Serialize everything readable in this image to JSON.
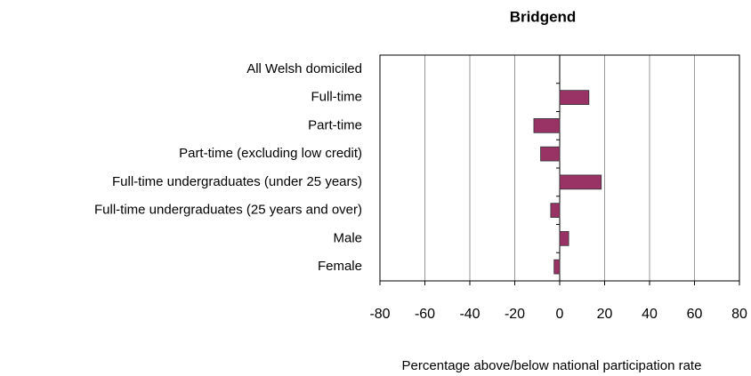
{
  "chart_data": {
    "type": "hbar",
    "title": "Bridgend",
    "categories": [
      "All Welsh domiciled",
      "Full-time",
      "Part-time",
      "Part-time (excluding low credit)",
      "Full-time undergraduates (under 25 years)",
      "Full-time undergraduates (25 years and over)",
      "Male",
      "Female"
    ],
    "values": [
      0,
      13,
      -11.5,
      -8.5,
      18.5,
      -4,
      4,
      -2.5
    ],
    "color": "#993366",
    "xlabel": "Percentage above/below national participation rate",
    "xlim": [
      -80,
      80
    ],
    "xticks": [
      -80,
      -60,
      -40,
      -20,
      0,
      20,
      40,
      60,
      80
    ],
    "grid": true
  }
}
